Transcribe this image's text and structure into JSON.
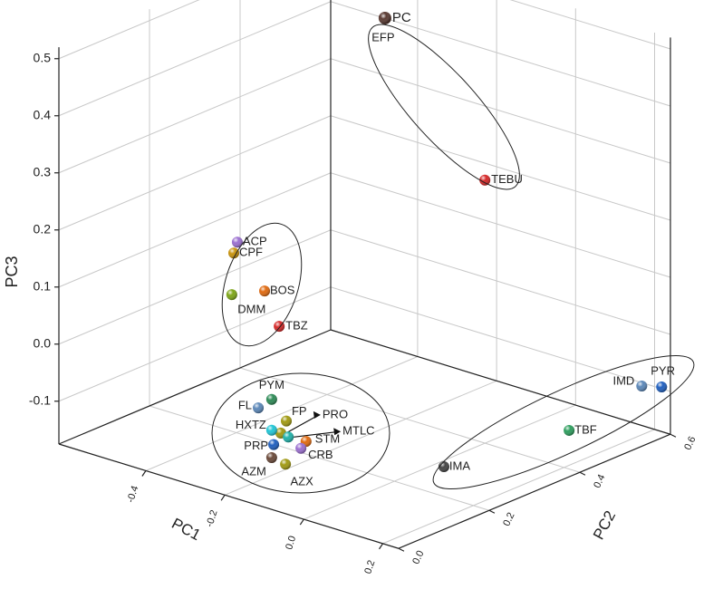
{
  "chart_data": {
    "type": "scatter3d",
    "xlabel": "PC1",
    "ylabel": "PC2",
    "zlabel": "PC3",
    "xlim": [
      -0.62,
      0.24
    ],
    "ylim": [
      0,
      0.6
    ],
    "zlim": [
      -0.175,
      0.52
    ],
    "xticks": [
      -0.4,
      -0.2,
      {
        "value": 0,
        "label": "0.0"
      },
      0.2
    ],
    "yticks": [
      {
        "value": 0,
        "label": "0.0"
      },
      0.2,
      0.4,
      0.6
    ],
    "zticks": [
      -0.1,
      {
        "value": 0,
        "label": "0.0"
      },
      0.1,
      0.2,
      0.3,
      0.4,
      0.5
    ],
    "grid": true,
    "labels": [
      "PC",
      "EFP",
      "TEBU",
      "ACP",
      "CPF",
      "BOS",
      "DMM",
      "TBZ",
      "PYM",
      "FL",
      "FP",
      "PRO",
      "MTLC",
      "HXTZ",
      "STM",
      "PRP",
      "CRB",
      "AZM",
      "AZX",
      "IMD",
      "PYR",
      "TBF",
      "IMA"
    ],
    "x": [
      -0.368,
      -0.368,
      -0.115,
      -0.283,
      -0.292,
      -0.214,
      -0.297,
      -0.177,
      -0.196,
      -0.23,
      -0.159,
      -0.173,
      -0.154,
      -0.196,
      -0.109,
      -0.191,
      -0.122,
      -0.196,
      -0.161,
      0.219,
      0.251,
      0.128,
      0.131
    ],
    "y": [
      0.5,
      0.5,
      0.5,
      0.1,
      0.1,
      0.1,
      0.1,
      0.1,
      0.1,
      0.1,
      0.1,
      0.1,
      0.1,
      0.1,
      0.1,
      0.1,
      0.1,
      0.1,
      0.1,
      0.555,
      0.571,
      0.474,
      0.195
    ],
    "z": [
      0.458,
      0.458,
      0.228,
      0.217,
      0.196,
      0.146,
      0.122,
      0.092,
      -0.04,
      -0.062,
      -0.07,
      -0.094,
      -0.097,
      -0.094,
      -0.095,
      -0.118,
      -0.11,
      -0.142,
      -0.146,
      -0.08,
      -0.08,
      -0.15,
      -0.12
    ],
    "colors": [
      "#5a3a32",
      "#5a3a32",
      "#d62828",
      "#9b6fd0",
      "#c8920a",
      "#e06a10",
      "#7ea617",
      "#d62828",
      "#2e8b57",
      "#5b87b8",
      "#a19a12",
      "#a19a12",
      "#20b2aa",
      "#22c6d6",
      "#e06a10",
      "#1f5fbf",
      "#9b6fd0",
      "#6b4a3a",
      "#a19a12",
      "#5b87b8",
      "#1f5fbf",
      "#2e9e5e",
      "#444444"
    ]
  }
}
